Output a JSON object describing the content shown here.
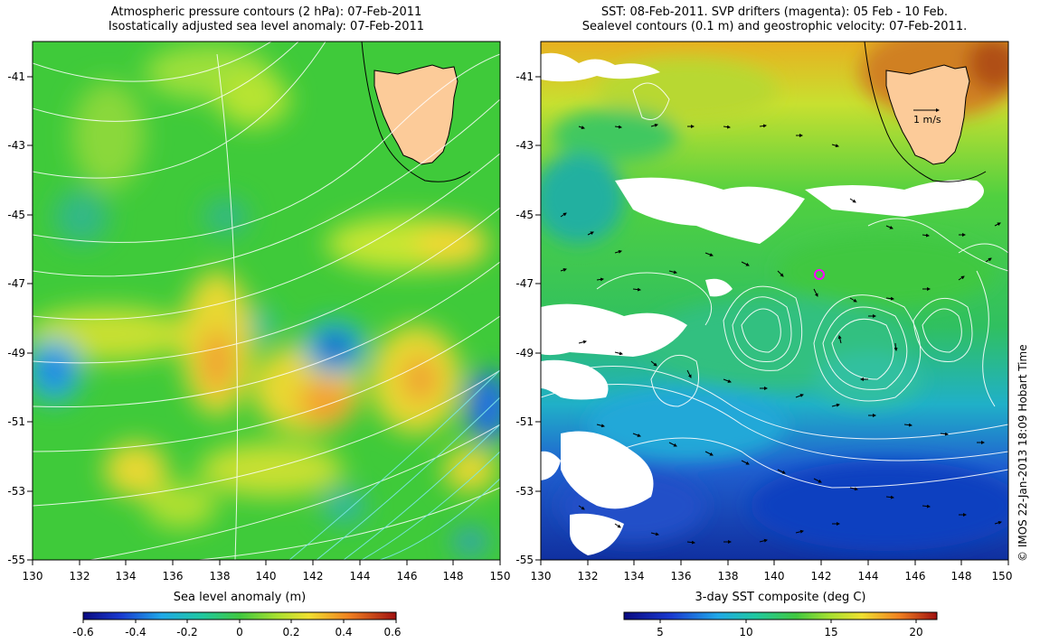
{
  "left_panel": {
    "title_line1": "Atmospheric pressure contours (2 hPa): 07-Feb-2011",
    "title_line2": "Isostatically adjusted sea level anomaly: 07-Feb-2011",
    "colorbar_label": "Sea level anomaly (m)",
    "colorbar_ticks": [
      "-0.6",
      "-0.4",
      "-0.2",
      "0",
      "0.2",
      "0.4",
      "0.6"
    ],
    "colorbar_range": [
      -0.6,
      0.6
    ]
  },
  "right_panel": {
    "title_line1": "SST: 08-Feb-2011. SVP drifters (magenta): 05 Feb - 10 Feb.",
    "title_line2": "Sealevel contours (0.1 m) and geostrophic velocity: 07-Feb-2011.",
    "colorbar_label": "3-day SST composite (deg C)",
    "colorbar_ticks": [
      "5",
      "10",
      "15",
      "20"
    ],
    "colorbar_range": [
      2.5,
      22
    ],
    "velocity_scale_label": "1 m/s"
  },
  "axes": {
    "lon_ticks": [
      "130",
      "132",
      "134",
      "136",
      "138",
      "140",
      "142",
      "144",
      "146",
      "148",
      "150"
    ],
    "lat_ticks": [
      "-41",
      "-43",
      "-45",
      "-47",
      "-49",
      "-51",
      "-53",
      "-55"
    ],
    "lon_range": [
      130,
      150
    ],
    "lat_range": [
      -55,
      -40.2
    ]
  },
  "credit": "© IMOS 22-Jan-2013 18:09 Hobart Time",
  "colors": {
    "land": "#fccb99",
    "sea_green": "#3ec83a",
    "contour": "#ffffff",
    "drifter": "#ff00ff"
  }
}
